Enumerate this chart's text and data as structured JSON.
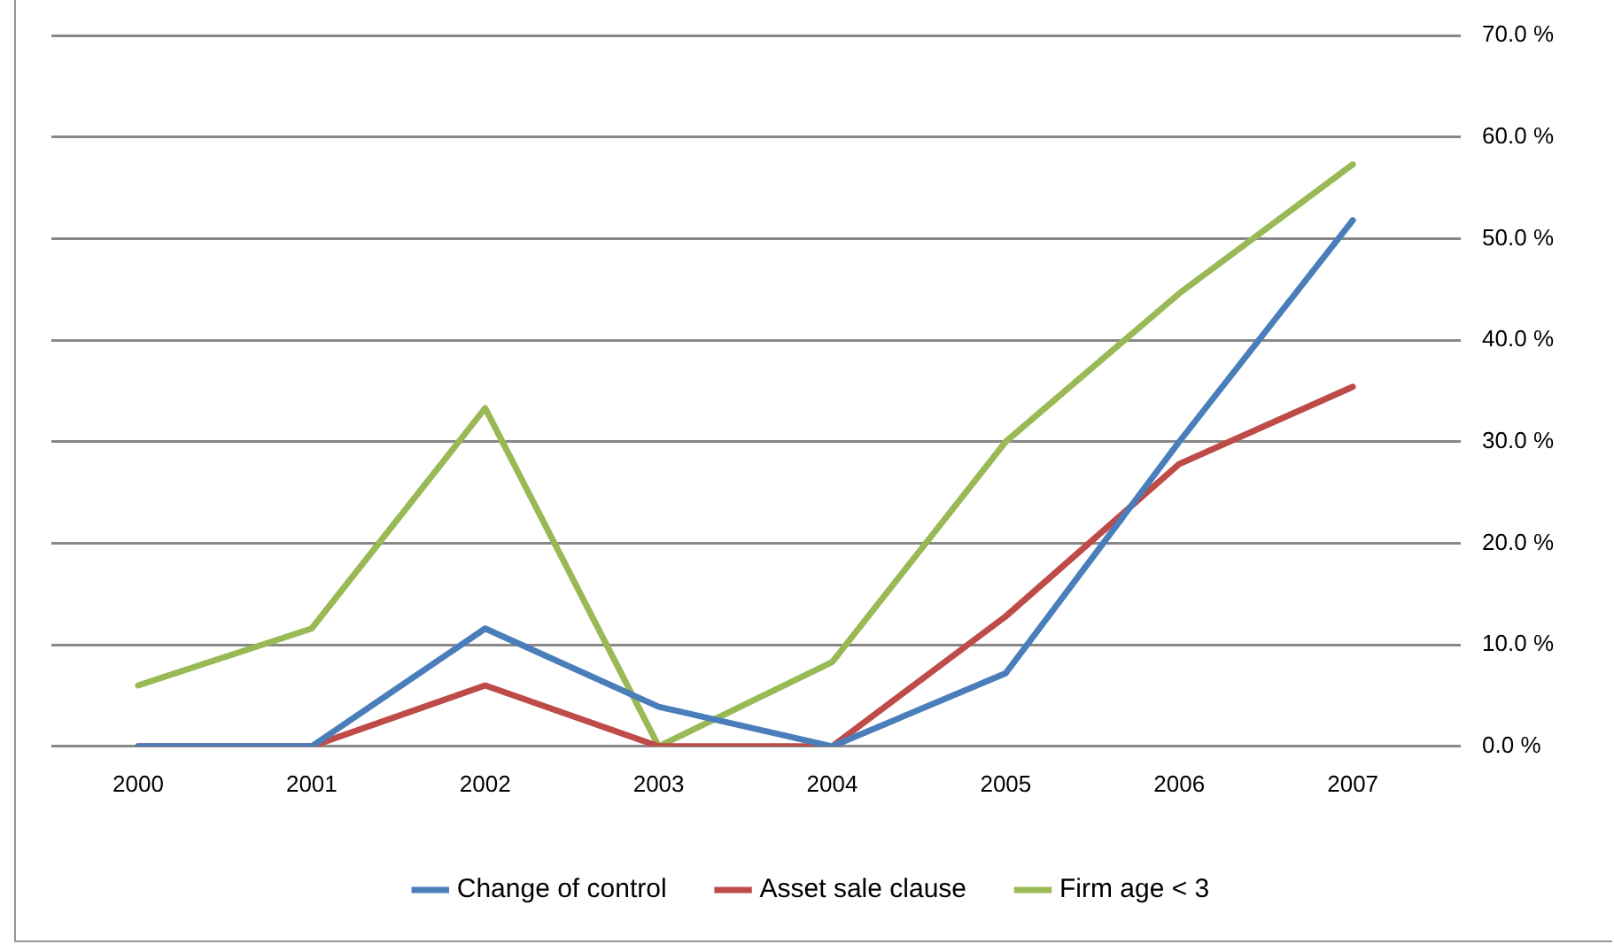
{
  "chart_data": {
    "type": "line",
    "categories": [
      "2000",
      "2001",
      "2002",
      "2003",
      "2004",
      "2005",
      "2006",
      "2007"
    ],
    "series": [
      {
        "name": "Change of control",
        "color": "#4a7ebb",
        "values": [
          0,
          0,
          11.6,
          3.9,
          0,
          7.2,
          30,
          51.8
        ]
      },
      {
        "name": "Asset sale clause",
        "color": "#be4b48",
        "values": [
          0,
          0,
          6,
          0,
          0,
          12.8,
          27.8,
          35.4
        ]
      },
      {
        "name": "Firm age < 3",
        "color": "#98b954",
        "values": [
          6,
          11.6,
          33.3,
          0,
          8.3,
          30,
          44.6,
          57.3
        ]
      }
    ],
    "ylim": [
      0,
      70
    ],
    "yticks": [
      {
        "value": 0,
        "label": "0.0 %"
      },
      {
        "value": 10,
        "label": "10.0 %"
      },
      {
        "value": 20,
        "label": "20.0 %"
      },
      {
        "value": 30,
        "label": "30.0 %"
      },
      {
        "value": 40,
        "label": "40.0 %"
      },
      {
        "value": 50,
        "label": "50.0 %"
      },
      {
        "value": 60,
        "label": "60.0 %"
      },
      {
        "value": 70,
        "label": "70.0 %"
      }
    ],
    "grid": "y",
    "legend": "bottom",
    "marker": "none",
    "line_style": "solid"
  }
}
